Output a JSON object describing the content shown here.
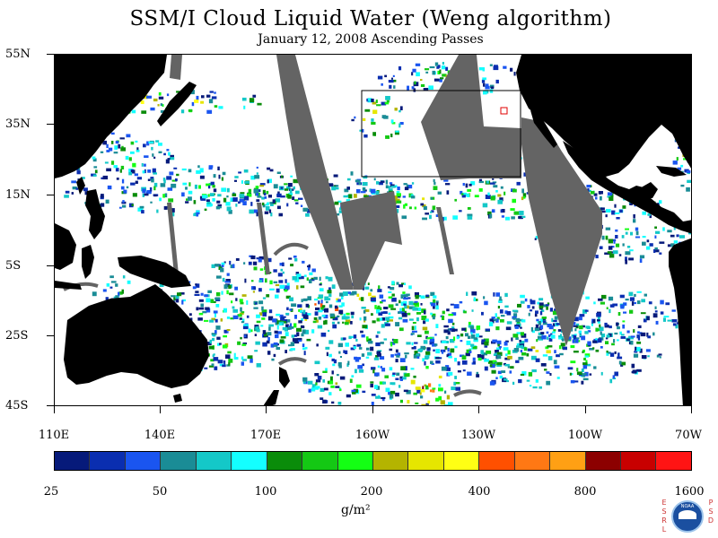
{
  "title": "SSM/I Cloud Liquid Water (Weng algorithm)",
  "subtitle": "January 12, 2008  Ascending Passes",
  "map": {
    "lat_labels": [
      "55N",
      "35N",
      "15N",
      "5S",
      "25S",
      "45S"
    ],
    "lon_labels": [
      "110E",
      "140E",
      "170E",
      "160W",
      "130W",
      "100W",
      "70W"
    ],
    "colors": {
      "ocean_clear": "#ffffff",
      "land": "#000000",
      "missing_swath": "#646464",
      "box_outline": "#000000",
      "marker": "#e00000"
    }
  },
  "colorbar": {
    "colors": [
      "#061a7a",
      "#0a2eb0",
      "#1a55f0",
      "#1a8c96",
      "#14c8c8",
      "#14ffff",
      "#0a8c0a",
      "#14c814",
      "#14ff14",
      "#b4b400",
      "#e6e600",
      "#ffff14",
      "#ff5000",
      "#ff7814",
      "#ffa014",
      "#8c0000",
      "#c80000",
      "#ff1414"
    ],
    "labels": [
      "25",
      "50",
      "100",
      "200",
      "400",
      "800",
      "1600"
    ]
  },
  "units": "g/m²",
  "logo": {
    "letters_left": "ESRL",
    "letters_right": "PSD",
    "seal_text": "NOAA",
    "icon": "noaa-logo"
  }
}
